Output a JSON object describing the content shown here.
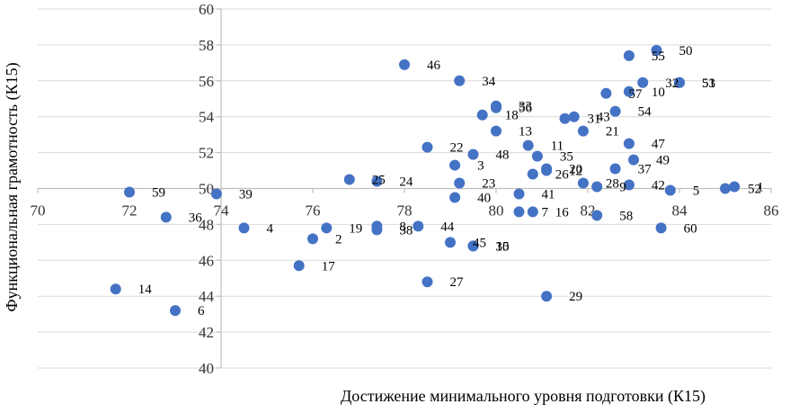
{
  "chart_data": {
    "type": "scatter",
    "xlabel": "Достижение минимального уровня подготовки  (К15)",
    "ylabel": "Функциональная грамотность (К15)",
    "xlim": [
      70,
      86
    ],
    "ylim": [
      40,
      60
    ],
    "x_ticks": [
      70,
      72,
      74,
      76,
      78,
      80,
      82,
      84,
      86
    ],
    "y_ticks": [
      40,
      42,
      44,
      46,
      48,
      50,
      52,
      54,
      56,
      58,
      60
    ],
    "x_axis_crosses_at_y": 50,
    "y_axis_crosses_at_x": 74,
    "grid": "horizontal",
    "color": "#4472c4",
    "points": [
      {
        "label": "1",
        "x": 85.2,
        "y": 50.1
      },
      {
        "label": "2",
        "x": 76.0,
        "y": 47.2
      },
      {
        "label": "3",
        "x": 79.1,
        "y": 51.3
      },
      {
        "label": "4",
        "x": 74.5,
        "y": 47.8
      },
      {
        "label": "5",
        "x": 83.8,
        "y": 49.9
      },
      {
        "label": "6",
        "x": 73.0,
        "y": 43.2
      },
      {
        "label": "7",
        "x": 80.5,
        "y": 48.7
      },
      {
        "label": "8",
        "x": 77.4,
        "y": 47.9
      },
      {
        "label": "9",
        "x": 82.2,
        "y": 50.1
      },
      {
        "label": "10",
        "x": 82.9,
        "y": 55.4
      },
      {
        "label": "11",
        "x": 80.7,
        "y": 52.4
      },
      {
        "label": "12",
        "x": 81.1,
        "y": 51.0
      },
      {
        "label": "13",
        "x": 80.0,
        "y": 53.2
      },
      {
        "label": "14",
        "x": 71.7,
        "y": 44.4
      },
      {
        "label": "15",
        "x": 79.5,
        "y": 46.8
      },
      {
        "label": "16",
        "x": 80.8,
        "y": 48.7
      },
      {
        "label": "17",
        "x": 75.7,
        "y": 45.7
      },
      {
        "label": "18",
        "x": 79.7,
        "y": 54.1
      },
      {
        "label": "19",
        "x": 76.3,
        "y": 47.8
      },
      {
        "label": "20",
        "x": 81.1,
        "y": 51.1
      },
      {
        "label": "21",
        "x": 81.9,
        "y": 53.2
      },
      {
        "label": "22",
        "x": 78.5,
        "y": 52.3
      },
      {
        "label": "23",
        "x": 79.2,
        "y": 50.3
      },
      {
        "label": "24",
        "x": 77.4,
        "y": 50.4
      },
      {
        "label": "25",
        "x": 76.8,
        "y": 50.5
      },
      {
        "label": "26",
        "x": 80.8,
        "y": 50.8
      },
      {
        "label": "27",
        "x": 78.5,
        "y": 44.8
      },
      {
        "label": "28",
        "x": 81.9,
        "y": 50.3
      },
      {
        "label": "29",
        "x": 81.1,
        "y": 44.0
      },
      {
        "label": "30",
        "x": 79.5,
        "y": 46.8
      },
      {
        "label": "31",
        "x": 81.5,
        "y": 53.9
      },
      {
        "label": "32",
        "x": 83.2,
        "y": 55.9
      },
      {
        "label": "33",
        "x": 80.0,
        "y": 54.6
      },
      {
        "label": "34",
        "x": 79.2,
        "y": 56.0
      },
      {
        "label": "35",
        "x": 80.9,
        "y": 51.8
      },
      {
        "label": "36",
        "x": 72.8,
        "y": 48.4
      },
      {
        "label": "37",
        "x": 82.6,
        "y": 51.1
      },
      {
        "label": "38",
        "x": 77.4,
        "y": 47.7
      },
      {
        "label": "39",
        "x": 73.9,
        "y": 49.7
      },
      {
        "label": "40",
        "x": 79.1,
        "y": 49.5
      },
      {
        "label": "41",
        "x": 80.5,
        "y": 49.7
      },
      {
        "label": "42",
        "x": 82.9,
        "y": 50.2
      },
      {
        "label": "43",
        "x": 81.7,
        "y": 54.0
      },
      {
        "label": "44",
        "x": 78.3,
        "y": 47.9
      },
      {
        "label": "45",
        "x": 79.0,
        "y": 47.0
      },
      {
        "label": "46",
        "x": 78.0,
        "y": 56.9
      },
      {
        "label": "47",
        "x": 82.9,
        "y": 52.5
      },
      {
        "label": "48",
        "x": 79.5,
        "y": 51.9
      },
      {
        "label": "49",
        "x": 83.0,
        "y": 51.6
      },
      {
        "label": "50",
        "x": 83.5,
        "y": 57.7
      },
      {
        "label": "51",
        "x": 84.0,
        "y": 55.9
      },
      {
        "label": "52",
        "x": 85.0,
        "y": 50.0
      },
      {
        "label": "53",
        "x": 84.0,
        "y": 55.9
      },
      {
        "label": "54",
        "x": 82.6,
        "y": 54.3
      },
      {
        "label": "55",
        "x": 82.9,
        "y": 57.4
      },
      {
        "label": "56",
        "x": 80.0,
        "y": 54.5
      },
      {
        "label": "57",
        "x": 82.4,
        "y": 55.3
      },
      {
        "label": "58",
        "x": 82.2,
        "y": 48.5
      },
      {
        "label": "59",
        "x": 72.0,
        "y": 49.8
      },
      {
        "label": "60",
        "x": 83.6,
        "y": 47.8
      }
    ]
  }
}
